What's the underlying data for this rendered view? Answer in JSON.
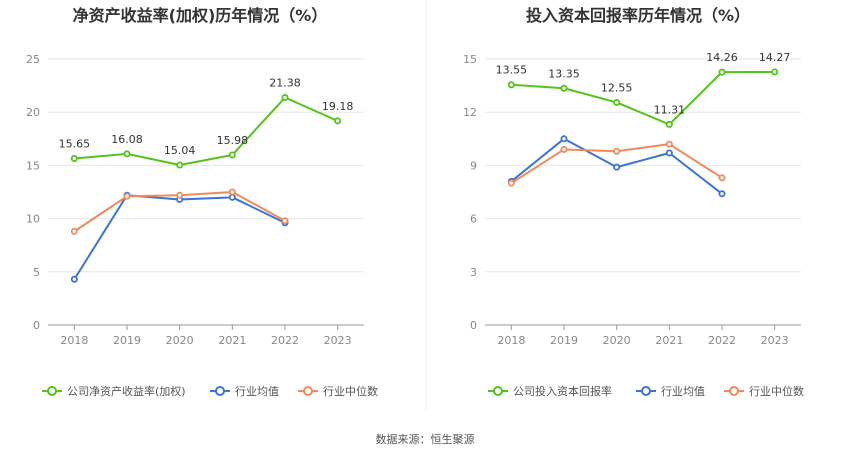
{
  "source_text": "数据来源：恒生聚源",
  "colors": {
    "company": "#52c41a",
    "avg": "#3a74d6",
    "median": "#f08a5d",
    "grid": "#e6e6e6",
    "axis": "#999999"
  },
  "chart_data": [
    {
      "type": "line",
      "title": "净资产收益率(加权)历年情况（%）",
      "categories": [
        "2018",
        "2019",
        "2020",
        "2021",
        "2022",
        "2023"
      ],
      "ylim": [
        0,
        25
      ],
      "yticks": [
        0,
        5,
        10,
        15,
        20,
        25
      ],
      "grid": true,
      "legend_position": "bottom",
      "series": [
        {
          "name": "公司净资产收益率(加权)",
          "role": "company",
          "values": [
            15.65,
            16.08,
            15.04,
            15.98,
            21.38,
            19.18
          ],
          "labels": [
            "15.65",
            "16.08",
            "15.04",
            "15.98",
            "21.38",
            "19.18"
          ]
        },
        {
          "name": "行业均值",
          "role": "avg",
          "values": [
            4.3,
            12.2,
            11.8,
            12.0,
            9.6,
            null
          ]
        },
        {
          "name": "行业中位数",
          "role": "median",
          "values": [
            8.8,
            12.1,
            12.2,
            12.5,
            9.8,
            null
          ]
        }
      ]
    },
    {
      "type": "line",
      "title": "投入资本回报率历年情况（%）",
      "categories": [
        "2018",
        "2019",
        "2020",
        "2021",
        "2022",
        "2023"
      ],
      "ylim": [
        0,
        15
      ],
      "yticks": [
        0,
        3,
        6,
        9,
        12,
        15
      ],
      "grid": true,
      "legend_position": "bottom",
      "series": [
        {
          "name": "公司投入资本回报率",
          "role": "company",
          "values": [
            13.55,
            13.35,
            12.55,
            11.31,
            14.26,
            14.27
          ],
          "labels": [
            "13.55",
            "13.35",
            "12.55",
            "11.31",
            "14.26",
            "14.27"
          ]
        },
        {
          "name": "行业均值",
          "role": "avg",
          "values": [
            8.1,
            10.5,
            8.9,
            9.7,
            7.4,
            null
          ]
        },
        {
          "name": "行业中位数",
          "role": "median",
          "values": [
            8.0,
            9.9,
            9.8,
            10.2,
            8.3,
            null
          ]
        }
      ]
    }
  ]
}
